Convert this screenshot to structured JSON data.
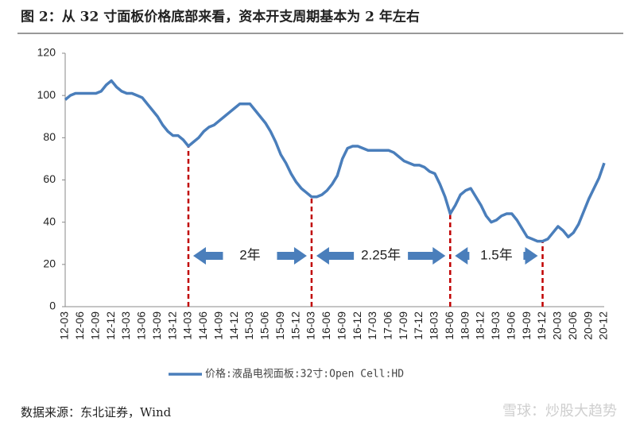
{
  "chart_data": {
    "type": "line",
    "title": "图 2：从 32 寸面板价格底部来看，资本开支周期基本为 2 年左右",
    "source": "数据来源：东北证券，Wind",
    "watermark": "雪球：炒股大趋势",
    "categories": [
      "12-03",
      null,
      null,
      "12-06",
      null,
      null,
      "12-09",
      null,
      null,
      "12-12",
      null,
      null,
      "13-03",
      null,
      null,
      "13-06",
      null,
      null,
      "13-09",
      null,
      null,
      "13-12",
      null,
      null,
      "14-03",
      null,
      null,
      "14-06",
      null,
      null,
      "14-09",
      null,
      null,
      "14-12",
      null,
      null,
      "15-03",
      null,
      null,
      "15-06",
      null,
      null,
      "15-09",
      null,
      null,
      "15-12",
      null,
      null,
      "16-03",
      null,
      null,
      "16-06",
      null,
      null,
      "16-09",
      null,
      null,
      "16-12",
      null,
      null,
      "17-03",
      null,
      null,
      "17-06",
      null,
      null,
      "17-09",
      null,
      null,
      "17-12",
      null,
      null,
      "18-03",
      null,
      null,
      "18-06",
      null,
      null,
      "18-09",
      null,
      null,
      "18-12",
      null,
      null,
      "19-03",
      null,
      null,
      "19-06",
      null,
      null,
      "19-09",
      null,
      null,
      "19-12",
      null,
      null,
      "20-03",
      null,
      null,
      "20-06",
      null,
      null,
      "20-09",
      null,
      null,
      "20-12"
    ],
    "series": [
      {
        "name": "价格:液晶电视面板:32寸:Open Cell:HD",
        "color": "#4a7ebb",
        "values": [
          98,
          100,
          101,
          101,
          101,
          101,
          101,
          102,
          105,
          107,
          104,
          102,
          101,
          101,
          100,
          99,
          96,
          93,
          90,
          86,
          83,
          81,
          81,
          79,
          76,
          78,
          80,
          83,
          85,
          86,
          88,
          90,
          92,
          94,
          96,
          96,
          96,
          93,
          90,
          87,
          83,
          78,
          72,
          68,
          63,
          59,
          56,
          54,
          52,
          52,
          53,
          55,
          58,
          62,
          70,
          75,
          76,
          76,
          75,
          74,
          74,
          74,
          74,
          74,
          73,
          71,
          69,
          68,
          67,
          67,
          66,
          64,
          63,
          58,
          52,
          44,
          48,
          53,
          55,
          56,
          52,
          48,
          43,
          40,
          41,
          43,
          44,
          44,
          41,
          37,
          33,
          32,
          31,
          31,
          32,
          35,
          38,
          36,
          33,
          35,
          39,
          45,
          51,
          56,
          61,
          68
        ]
      }
    ],
    "ylim": [
      0,
      120
    ],
    "yticks": [
      0,
      20,
      40,
      60,
      80,
      100,
      120
    ],
    "annotations": [
      {
        "label": "2年",
        "from": "14-03",
        "to": "16-03"
      },
      {
        "label": "2.25年",
        "from": "16-03",
        "to": "18-06"
      },
      {
        "label": "1.5年",
        "from": "18-06",
        "to": "19-12"
      }
    ],
    "legend": "bottom",
    "grid": false
  }
}
